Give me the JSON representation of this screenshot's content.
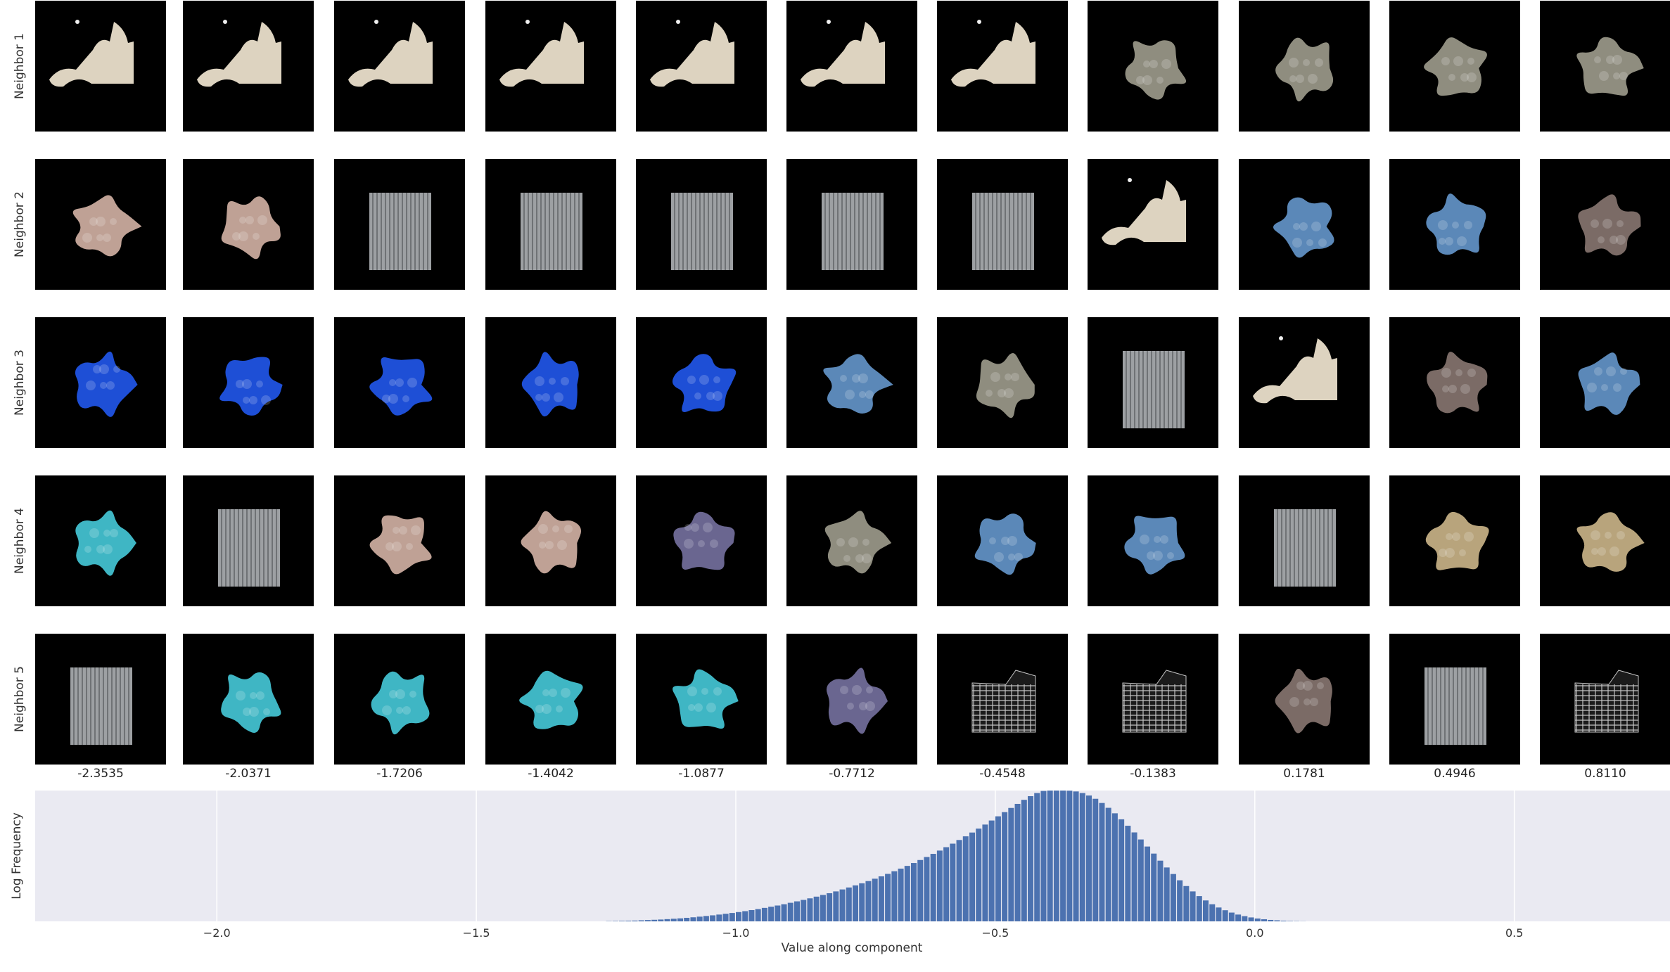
{
  "patch_grid": {
    "row_labels": [
      "Neighbor 1",
      "Neighbor 2",
      "Neighbor 3",
      "Neighbor 4",
      "Neighbor 5"
    ],
    "column_values": [
      "-2.3535",
      "-2.0371",
      "-1.7206",
      "-1.4042",
      "-1.0877",
      "-0.7712",
      "-0.4548",
      "-0.1383",
      "0.1781",
      "0.4946",
      "0.8110"
    ],
    "texture_colors": {
      "cream": "#ddd3c0",
      "mosaic": "#8f8d7f",
      "sand": "#bfa195",
      "grey_stripes": "#9da0a3",
      "knit_blue": "#5b88b8",
      "taupe": "#7b6b66",
      "royal_blue": "#1e4fd6",
      "cyan": "#3fb6c4",
      "lavender": "#6a6690",
      "tan": "#b8a47c",
      "grid_white": "#c4c4c4"
    },
    "cells": [
      [
        "cream",
        "cream",
        "cream",
        "cream",
        "cream",
        "cream",
        "cream",
        "mosaic",
        "mosaic",
        "mosaic",
        "mosaic"
      ],
      [
        "sand",
        "sand",
        "grey_stripes",
        "grey_stripes",
        "grey_stripes",
        "grey_stripes",
        "grey_stripes",
        "cream",
        "knit_blue",
        "knit_blue",
        "taupe"
      ],
      [
        "royal_blue",
        "royal_blue",
        "royal_blue",
        "royal_blue",
        "royal_blue",
        "knit_blue",
        "mosaic",
        "grey_stripes",
        "cream",
        "taupe",
        "knit_blue"
      ],
      [
        "cyan",
        "grey_stripes",
        "sand",
        "sand",
        "lavender",
        "mosaic",
        "knit_blue",
        "knit_blue",
        "grey_stripes",
        "tan",
        "tan"
      ],
      [
        "grey_stripes",
        "cyan",
        "cyan",
        "cyan",
        "cyan",
        "lavender",
        "grid_white",
        "grid_white",
        "taupe",
        "grey_stripes",
        "grid_white"
      ]
    ]
  },
  "chart_data": {
    "type": "bar",
    "title": "",
    "xlabel": "Value along component",
    "ylabel": "Log Frequency",
    "xlim": [
      -2.35,
      0.8
    ],
    "ylim": [
      0,
      1
    ],
    "grid": true,
    "x_ticks": [
      -2.0,
      -1.5,
      -1.0,
      -0.5,
      0.0,
      0.5
    ],
    "x_tick_labels": [
      "−2.0",
      "−1.5",
      "−1.0",
      "−0.5",
      "0.0",
      "0.5"
    ],
    "bar_color": "#4c72b0",
    "background_color": "#eaeaf2",
    "bins": {
      "start": -1.25,
      "width": 0.0125,
      "heights": [
        0.002,
        0.003,
        0.004,
        0.005,
        0.006,
        0.008,
        0.01,
        0.012,
        0.014,
        0.017,
        0.02,
        0.023,
        0.027,
        0.031,
        0.036,
        0.041,
        0.046,
        0.052,
        0.058,
        0.064,
        0.071,
        0.078,
        0.086,
        0.094,
        0.103,
        0.112,
        0.121,
        0.131,
        0.142,
        0.153,
        0.164,
        0.176,
        0.189,
        0.202,
        0.215,
        0.229,
        0.244,
        0.259,
        0.275,
        0.291,
        0.308,
        0.326,
        0.344,
        0.363,
        0.383,
        0.403,
        0.424,
        0.446,
        0.469,
        0.492,
        0.516,
        0.541,
        0.567,
        0.594,
        0.622,
        0.65,
        0.679,
        0.709,
        0.74,
        0.771,
        0.803,
        0.835,
        0.867,
        0.898,
        0.929,
        0.957,
        0.981,
        0.997,
        1.0,
        1.0,
        1.0,
        0.999,
        0.993,
        0.981,
        0.962,
        0.937,
        0.905,
        0.868,
        0.826,
        0.78,
        0.731,
        0.68,
        0.626,
        0.572,
        0.518,
        0.464,
        0.412,
        0.362,
        0.314,
        0.27,
        0.229,
        0.193,
        0.16,
        0.131,
        0.106,
        0.085,
        0.067,
        0.052,
        0.04,
        0.03,
        0.022,
        0.016,
        0.011,
        0.008,
        0.005,
        0.003,
        0.002,
        0.001
      ]
    }
  }
}
